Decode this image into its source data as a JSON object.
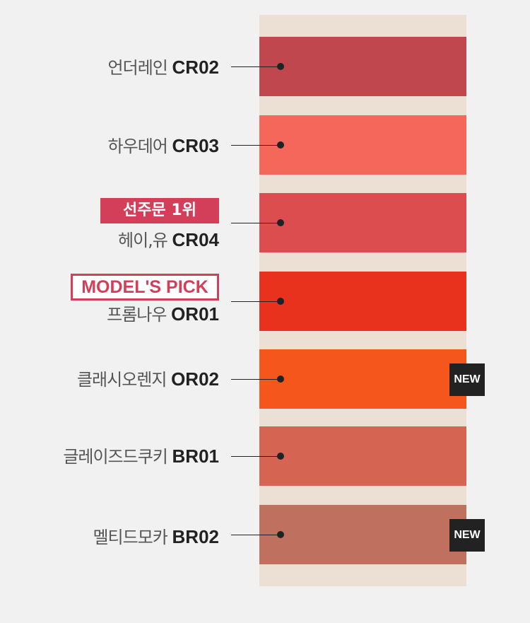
{
  "shades": [
    {
      "name": "언더레인",
      "code": "CR02",
      "color": "#c0474d"
    },
    {
      "name": "하우데어",
      "code": "CR03",
      "color": "#f4675a"
    },
    {
      "name": "헤이,유",
      "code": "CR04",
      "color": "#db4d4f",
      "badge": "선주문 1위"
    },
    {
      "name": "프롬나우",
      "code": "OR01",
      "color": "#e8321e",
      "badge": "MODEL'S PICK"
    },
    {
      "name": "클래시오렌지",
      "code": "OR02",
      "color": "#f4561c",
      "tag": "NEW"
    },
    {
      "name": "글레이즈드쿠키",
      "code": "BR01",
      "color": "#d66452"
    },
    {
      "name": "멜티드모카",
      "code": "BR02",
      "color": "#c0705f",
      "tag": "NEW"
    }
  ]
}
